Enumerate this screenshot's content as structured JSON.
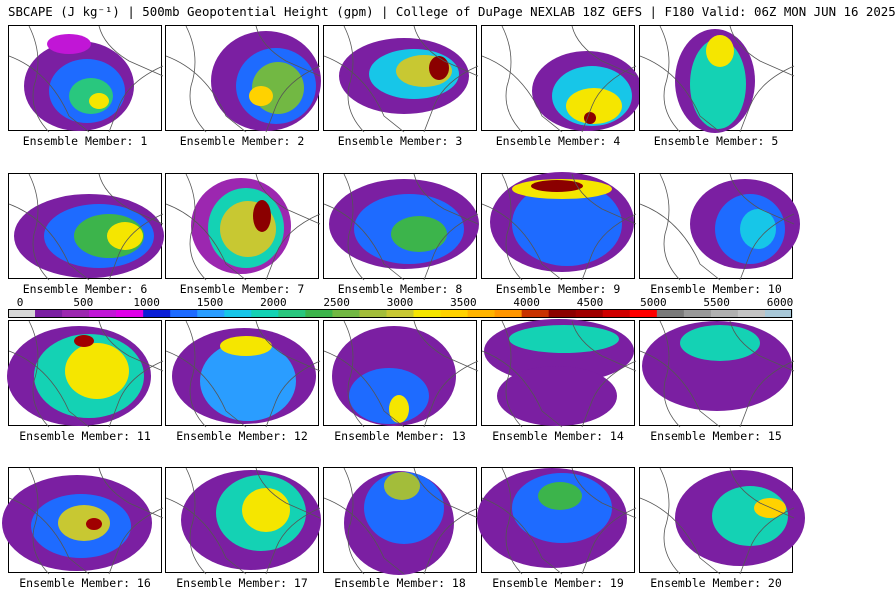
{
  "header": {
    "title": "SBCAPE (J kg⁻¹) | 500mb Geopotential Height (gpm) | College of DuPage NEXLAB 18Z GEFS | F180 Valid: 06Z MON JUN 16 2025"
  },
  "panels": [
    {
      "label": "Ensemble Member: 1"
    },
    {
      "label": "Ensemble Member: 2"
    },
    {
      "label": "Ensemble Member: 3"
    },
    {
      "label": "Ensemble Member: 4"
    },
    {
      "label": "Ensemble Member: 5"
    },
    {
      "label": "Ensemble Member: 6"
    },
    {
      "label": "Ensemble Member: 7"
    },
    {
      "label": "Ensemble Member: 8"
    },
    {
      "label": "Ensemble Member: 9"
    },
    {
      "label": "Ensemble Member: 10"
    },
    {
      "label": "Ensemble Member: 11"
    },
    {
      "label": "Ensemble Member: 12"
    },
    {
      "label": "Ensemble Member: 13"
    },
    {
      "label": "Ensemble Member: 14"
    },
    {
      "label": "Ensemble Member: 15"
    },
    {
      "label": "Ensemble Member: 16"
    },
    {
      "label": "Ensemble Member: 17"
    },
    {
      "label": "Ensemble Member: 18"
    },
    {
      "label": "Ensemble Member: 19"
    },
    {
      "label": "Ensemble Member: 20"
    }
  ],
  "colorbar": {
    "ticks": [
      "0",
      "500",
      "1000",
      "1500",
      "2000",
      "2500",
      "3000",
      "3500",
      "4000",
      "4500",
      "5000",
      "5500",
      "6000"
    ],
    "colors": [
      "#d8d8d8",
      "#7b1fa2",
      "#9c27b0",
      "#c116d6",
      "#e000e8",
      "#0c1fd6",
      "#1e6bff",
      "#2a9dff",
      "#17c6e8",
      "#14d2b4",
      "#29c77e",
      "#3cb44b",
      "#72b843",
      "#a3bd3a",
      "#c8c832",
      "#f5e600",
      "#ffd200",
      "#ffb400",
      "#ff9600",
      "#c83200",
      "#8b0000",
      "#a00000",
      "#d00000",
      "#ff0000",
      "#7a7a7a",
      "#999999",
      "#b0b0b0",
      "#c4c4c4",
      "#a8c8d8"
    ]
  }
}
